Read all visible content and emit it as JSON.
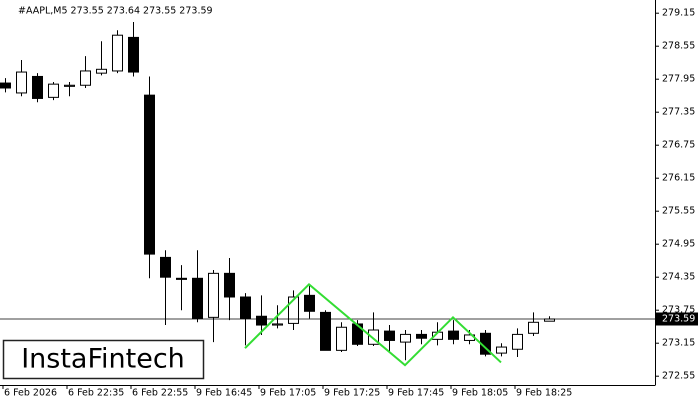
{
  "chart_data": {
    "type": "candlestick",
    "title": "#AAPL,M5  273.55 273.64 273.55 273.59",
    "watermark": "InstaFintech",
    "categories": [
      "6 Feb 2026",
      null,
      null,
      null,
      "6 Feb 22:35",
      null,
      null,
      null,
      "6 Feb 22:55",
      null,
      null,
      null,
      "9 Feb 16:45",
      null,
      null,
      null,
      "9 Feb 17:05",
      null,
      null,
      null,
      "9 Feb 17:25",
      null,
      null,
      null,
      "9 Feb 17:45",
      null,
      null,
      null,
      "9 Feb 18:05",
      null,
      null,
      null,
      "9 Feb 18:25",
      null,
      null
    ],
    "open": [
      277.88,
      277.7,
      278.0,
      277.62,
      277.82,
      277.84,
      278.06,
      278.1,
      278.71,
      277.66,
      274.71,
      274.33,
      274.33,
      273.62,
      274.42,
      273.99,
      273.64,
      273.48,
      273.51,
      274.02,
      273.71,
      273.02,
      273.5,
      273.13,
      273.37,
      273.17,
      273.31,
      273.22,
      273.37,
      273.2,
      273.33,
      272.97,
      273.04,
      273.33,
      273.55
    ],
    "high": [
      277.97,
      278.3,
      278.06,
      277.9,
      277.9,
      278.37,
      278.64,
      278.84,
      278.99,
      278.0,
      274.84,
      274.57,
      274.84,
      274.48,
      274.7,
      274.06,
      274.02,
      273.84,
      274.11,
      274.19,
      273.75,
      273.53,
      273.57,
      273.71,
      273.48,
      273.39,
      273.39,
      273.53,
      273.57,
      273.39,
      273.39,
      273.15,
      273.42,
      273.71,
      273.64
    ],
    "low": [
      277.71,
      277.64,
      277.53,
      277.57,
      277.64,
      277.79,
      278.02,
      278.06,
      278.0,
      274.33,
      273.48,
      273.75,
      273.53,
      273.17,
      273.57,
      273.11,
      273.3,
      273.42,
      273.39,
      273.6,
      273.02,
      272.99,
      273.1,
      273.1,
      272.99,
      272.84,
      273.13,
      273.11,
      273.13,
      273.13,
      272.91,
      272.91,
      272.9,
      273.28,
      273.55
    ],
    "close": [
      277.79,
      278.08,
      277.6,
      277.86,
      277.84,
      278.1,
      278.13,
      278.75,
      278.08,
      274.77,
      274.35,
      274.31,
      273.6,
      274.42,
      273.99,
      273.6,
      273.48,
      273.5,
      273.99,
      273.73,
      273.02,
      273.44,
      273.13,
      273.39,
      273.2,
      273.31,
      273.24,
      273.35,
      273.22,
      273.3,
      272.95,
      273.08,
      273.31,
      273.53,
      273.59
    ],
    "up_color": "#ffffff",
    "down_color": "#000000",
    "last_price": 273.59,
    "pattern": {
      "color": "#33dd33",
      "x": [
        15,
        19,
        25,
        28,
        31
      ],
      "values": [
        273.06,
        274.22,
        272.75,
        273.62,
        272.8
      ]
    },
    "ylim": [
      272.39,
      279.39
    ],
    "yticks": [
      279.15,
      278.55,
      277.95,
      277.35,
      276.75,
      276.15,
      275.55,
      274.95,
      274.35,
      273.75,
      273.15,
      272.55
    ]
  }
}
